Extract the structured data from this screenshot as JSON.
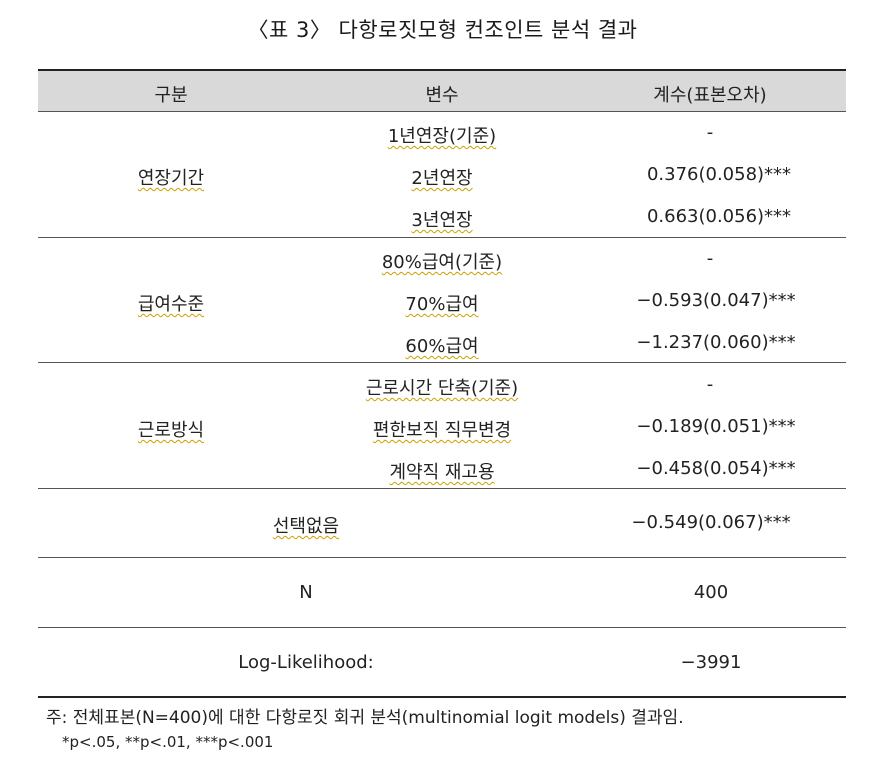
{
  "title": "〈표 3〉 다항로짓모형 컨조인트 분석 결과",
  "header": {
    "col1": "구분",
    "col2": "변수",
    "col3": "계수(표본오차)"
  },
  "groups": [
    {
      "label": "연장기간",
      "rows": [
        {
          "var": "1년연장(기준)",
          "coef": "-"
        },
        {
          "var": "2년연장",
          "coef": "0.376(0.058)***"
        },
        {
          "var": "3년연장",
          "coef": "0.663(0.056)***"
        }
      ]
    },
    {
      "label": "급여수준",
      "rows": [
        {
          "var": "80%급여(기준)",
          "coef": "-"
        },
        {
          "var": "70%급여",
          "coef": "−0.593(0.047)***"
        },
        {
          "var": "60%급여",
          "coef": "−1.237(0.060)***"
        }
      ]
    },
    {
      "label": "근로방식",
      "rows": [
        {
          "var": "근로시간 단축(기준)",
          "coef": "-"
        },
        {
          "var": "편한보직 직무변경",
          "coef": "−0.189(0.051)***"
        },
        {
          "var": "계약직 재고용",
          "coef": "−0.458(0.054)***"
        }
      ]
    }
  ],
  "summary": [
    {
      "label": "선택없음",
      "value": "−0.549(0.067)***"
    },
    {
      "label": "N",
      "value": "400"
    },
    {
      "label": "Log-Likelihood:",
      "value": "−3991"
    }
  ],
  "notes": {
    "line1": "주: 전체표본(N=400)에 대한 다항로짓 회귀 분석(multinomial logit models) 결과임.",
    "line2": "*p<.05, **p<.01, ***p<.001"
  }
}
